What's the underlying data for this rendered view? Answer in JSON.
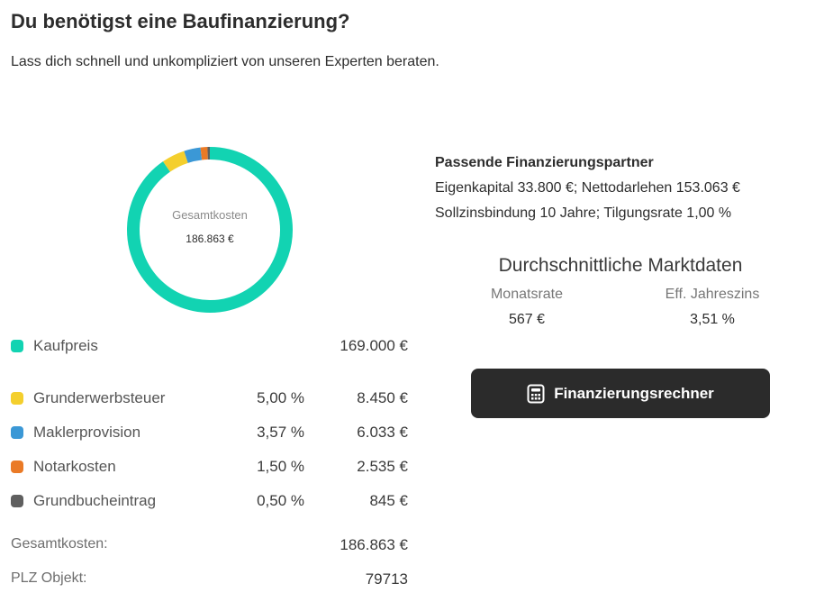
{
  "header": {
    "title": "Du benötigst eine Baufinanzierung?",
    "subtitle": "Lass dich schnell und unkompliziert von unseren Experten beraten."
  },
  "donut": {
    "center_label": "Gesamtkosten",
    "center_value": "186.863 €"
  },
  "costs": [
    {
      "name": "Kaufpreis",
      "percent": "",
      "amount": "169.000 €",
      "color": "#12d3b2",
      "value": 169000
    },
    {
      "name": "Grunderwerbsteuer",
      "percent": "5,00 %",
      "amount": "8.450 €",
      "color": "#f4cf2d",
      "value": 8450
    },
    {
      "name": "Maklerprovision",
      "percent": "3,57 %",
      "amount": "6.033 €",
      "color": "#3b98d6",
      "value": 6033
    },
    {
      "name": "Notarkosten",
      "percent": "1,50 %",
      "amount": "2.535 €",
      "color": "#ea7a26",
      "value": 2535
    },
    {
      "name": "Grundbucheintrag",
      "percent": "0,50 %",
      "amount": "845 €",
      "color": "#5f5f5f",
      "value": 845
    }
  ],
  "totals": {
    "total_label": "Gesamtkosten:",
    "total_value": "186.863 €",
    "plz_label": "PLZ Objekt:",
    "plz_value": "79713"
  },
  "partner": {
    "title": "Passende Finanzierungspartner",
    "line1": "Eigenkapital 33.800 €; Nettodarlehen 153.063 €",
    "line2": "Sollzinsbindung 10 Jahre; Tilgungsrate 1,00 %"
  },
  "market": {
    "title": "Durchschnittliche Marktdaten",
    "rate_label": "Monatsrate",
    "rate_value": "567 €",
    "interest_label": "Eff. Jahreszins",
    "interest_value": "3,51 %"
  },
  "button": {
    "label": "Finanzierungsrechner",
    "icon": "calculator-icon"
  }
}
